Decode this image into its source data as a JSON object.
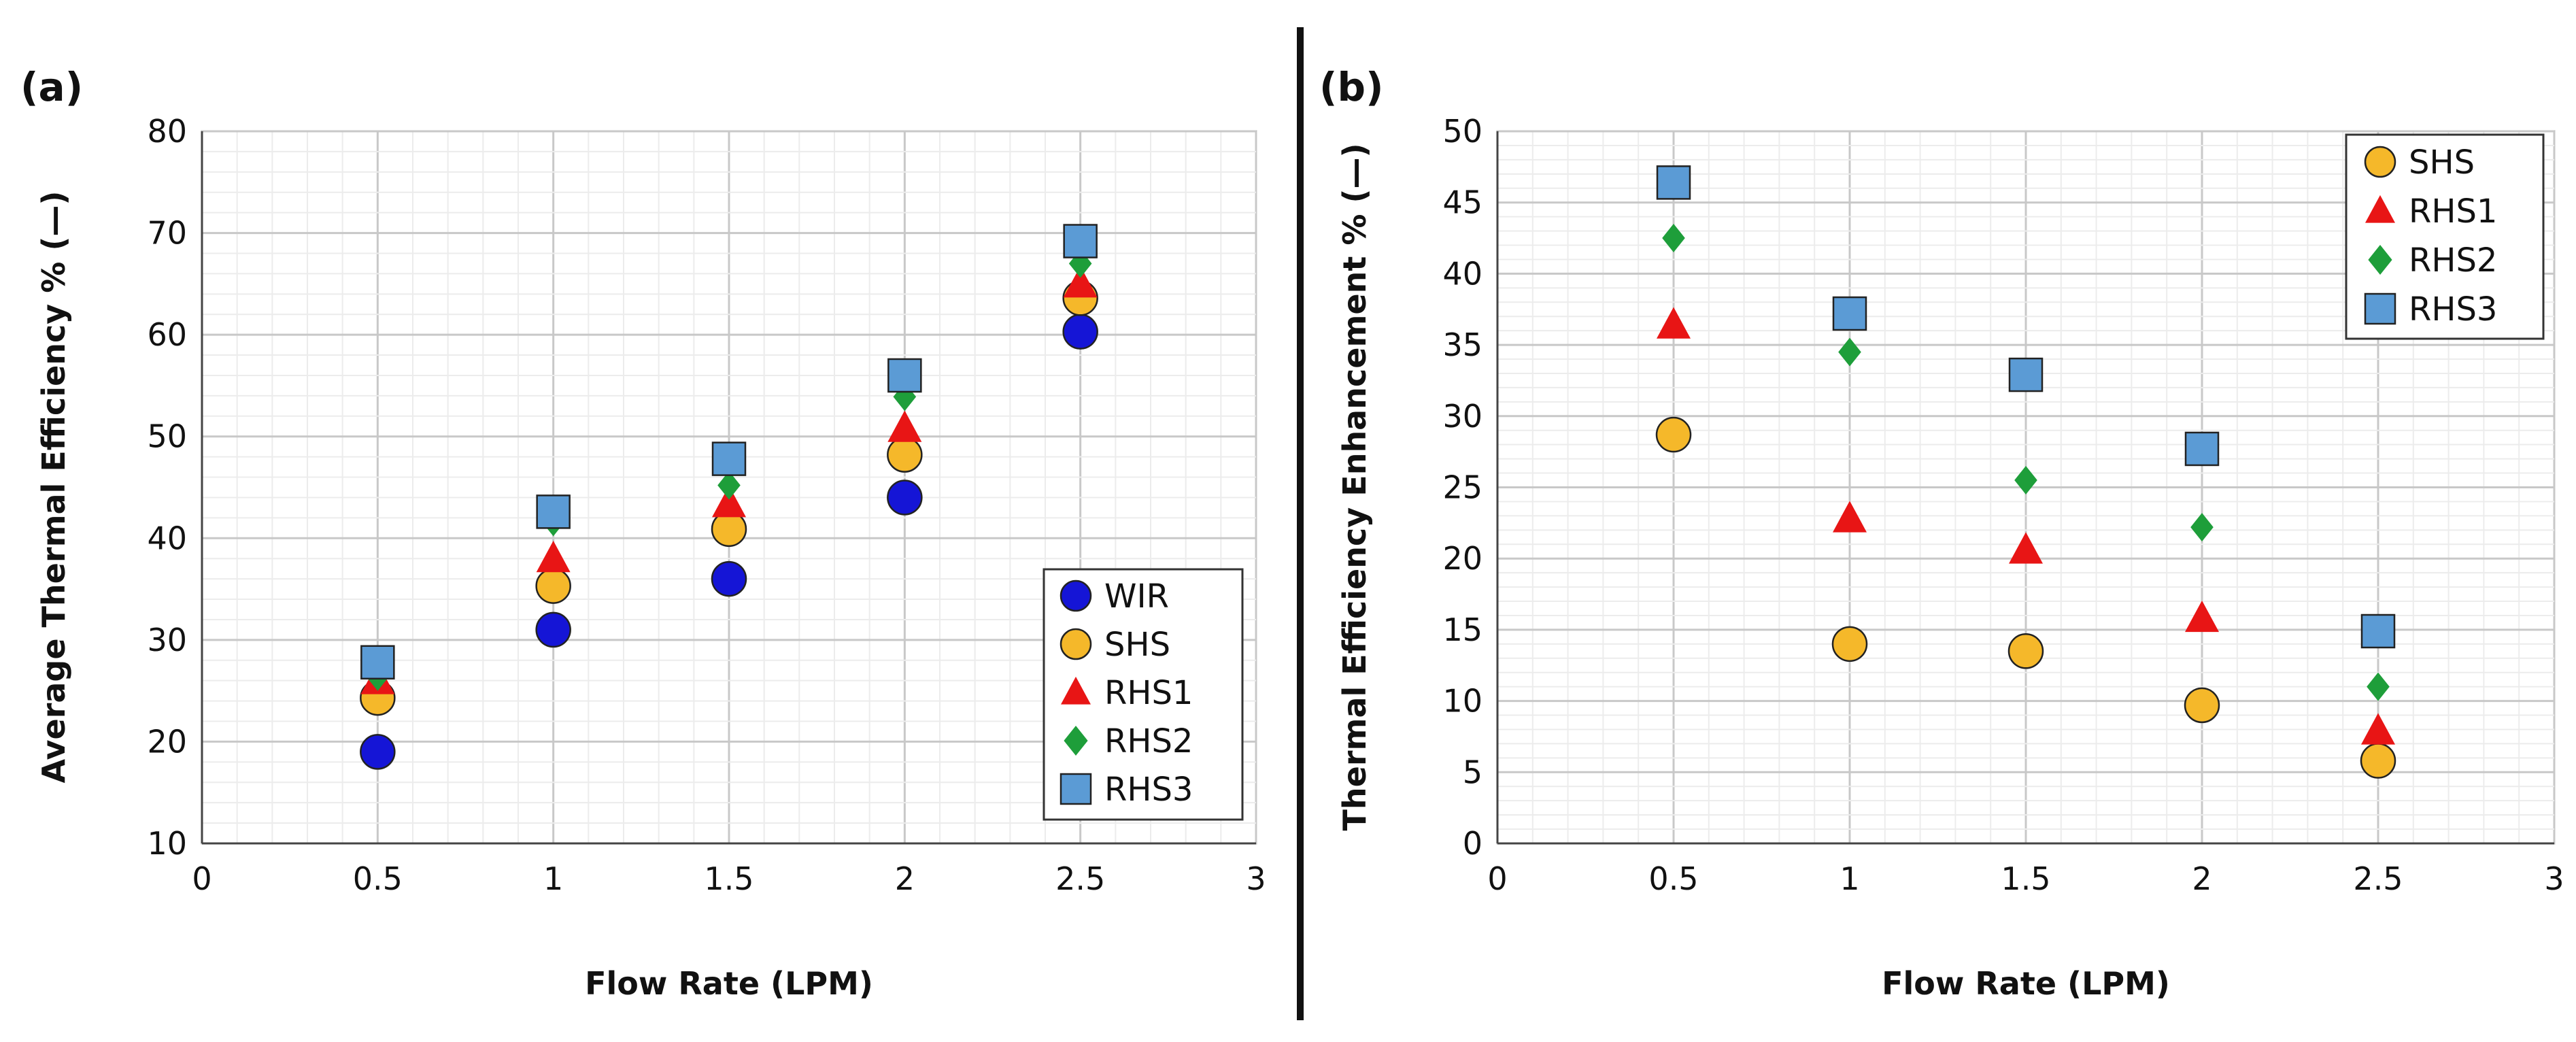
{
  "chart_data": [
    {
      "panel": "(a)",
      "type": "scatter",
      "xlabel": "Flow Rate (LPM)",
      "ylabel": "Average Thermal Efficiency % (—)",
      "xlim": [
        0,
        3
      ],
      "ylim": [
        10,
        80
      ],
      "xticks": [
        0,
        0.5,
        1,
        1.5,
        2,
        2.5,
        3
      ],
      "xtick_labels": [
        "0",
        "0.5",
        "1",
        "1.5",
        "2",
        "2.5",
        "3"
      ],
      "yticks": [
        10,
        20,
        30,
        40,
        50,
        60,
        70,
        80
      ],
      "ytick_labels": [
        "10",
        "20",
        "30",
        "40",
        "50",
        "60",
        "70",
        "80"
      ],
      "grid": true,
      "legend_position": "bottom-right",
      "series": [
        {
          "name": "WIR",
          "marker": "circle",
          "color": "#1515d6",
          "x": [
            0.5,
            1,
            1.5,
            2,
            2.5
          ],
          "y": [
            19,
            31,
            36,
            44,
            60.3
          ]
        },
        {
          "name": "SHS",
          "marker": "circle",
          "color": "#f5b82a",
          "x": [
            0.5,
            1,
            1.5,
            2,
            2.5
          ],
          "y": [
            24.3,
            35.3,
            40.9,
            48.2,
            63.6
          ]
        },
        {
          "name": "RHS1",
          "marker": "triangle",
          "color": "#e81515",
          "x": [
            0.5,
            1,
            1.5,
            2,
            2.5
          ],
          "y": [
            26,
            38,
            43.4,
            50.8,
            65
          ]
        },
        {
          "name": "RHS2",
          "marker": "diamond",
          "color": "#1e9e3a",
          "x": [
            0.5,
            1,
            1.5,
            2,
            2.5
          ],
          "y": [
            26.4,
            41.6,
            45.2,
            53.9,
            67
          ]
        },
        {
          "name": "RHS3",
          "marker": "square",
          "color": "#5b9bd5",
          "x": [
            0.5,
            1,
            1.5,
            2,
            2.5
          ],
          "y": [
            27.8,
            42.6,
            47.8,
            56,
            69.2
          ]
        }
      ]
    },
    {
      "panel": "(b)",
      "type": "scatter",
      "xlabel": "Flow Rate (LPM)",
      "ylabel": "Thermal Efficiency Enhancement % (—)",
      "xlim": [
        0,
        3
      ],
      "ylim": [
        0,
        50
      ],
      "xticks": [
        0,
        0.5,
        1,
        1.5,
        2,
        2.5,
        3
      ],
      "xtick_labels": [
        "0",
        "0.5",
        "1",
        "1.5",
        "2",
        "2.5",
        "3"
      ],
      "yticks": [
        0,
        5,
        10,
        15,
        20,
        25,
        30,
        35,
        40,
        45,
        50
      ],
      "ytick_labels": [
        "0",
        "5",
        "10",
        "15",
        "20",
        "25",
        "30",
        "35",
        "40",
        "45",
        "50"
      ],
      "grid": true,
      "legend_position": "top-right",
      "series": [
        {
          "name": "SHS",
          "marker": "circle",
          "color": "#f5b82a",
          "x": [
            0.5,
            1,
            1.5,
            2,
            2.5
          ],
          "y": [
            28.7,
            14,
            13.5,
            9.7,
            5.8
          ]
        },
        {
          "name": "RHS1",
          "marker": "triangle",
          "color": "#e81515",
          "x": [
            0.5,
            1,
            1.5,
            2,
            2.5
          ],
          "y": [
            36.4,
            22.8,
            20.6,
            15.8,
            7.9
          ]
        },
        {
          "name": "RHS2",
          "marker": "diamond",
          "color": "#1e9e3a",
          "x": [
            0.5,
            1,
            1.5,
            2,
            2.5
          ],
          "y": [
            42.5,
            34.5,
            25.5,
            22.2,
            11
          ]
        },
        {
          "name": "RHS3",
          "marker": "square",
          "color": "#5b9bd5",
          "x": [
            0.5,
            1,
            1.5,
            2,
            2.5
          ],
          "y": [
            46.4,
            37.2,
            32.9,
            27.7,
            14.9
          ]
        }
      ]
    }
  ]
}
